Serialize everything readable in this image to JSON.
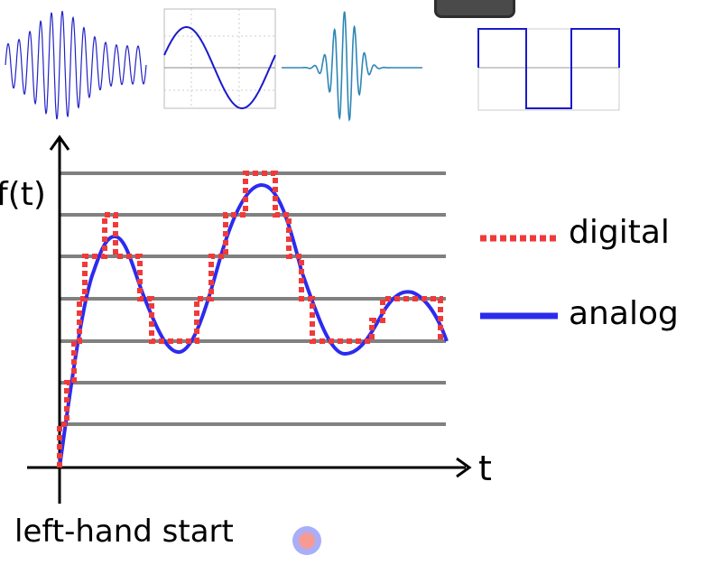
{
  "axes": {
    "y_label": "f(t)",
    "x_label": "t"
  },
  "legend": {
    "digital": {
      "label": "digital",
      "color": "#f03a3a"
    },
    "analog": {
      "label": "analog",
      "color": "#2b2bf0"
    }
  },
  "start_marker": {
    "label": "left-hand start"
  },
  "colors": {
    "gridline": "#808080",
    "axis": "#000000",
    "thumb_teal": "#2f86b6",
    "thumb_blue": "#1a1acc"
  },
  "thumbnails": [
    "wave-packet-icon",
    "sine-wave-icon",
    "damped-burst-icon",
    "square-wave-icon"
  ]
}
